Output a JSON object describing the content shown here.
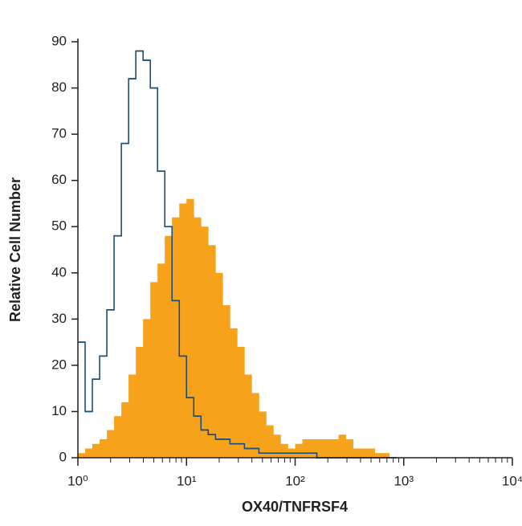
{
  "chart_data": {
    "type": "histogram",
    "x_label": "OX40/TNFRSF4",
    "y_label": "Relative Cell Number",
    "xscale": "log",
    "xlim": [
      1,
      10000
    ],
    "xticks": [
      {
        "value": 1,
        "label": "10⁰"
      },
      {
        "value": 10,
        "label": "10¹"
      },
      {
        "value": 100,
        "label": "10²"
      },
      {
        "value": 1000,
        "label": "10³"
      },
      {
        "value": 10000,
        "label": "10⁴"
      }
    ],
    "ylim": [
      0,
      90
    ],
    "yticks": [
      0,
      10,
      20,
      30,
      40,
      50,
      60,
      70,
      80,
      90
    ],
    "bins": [
      1,
      1.166,
      1.359,
      1.585,
      1.848,
      2.154,
      2.512,
      2.929,
      3.415,
      3.981,
      4.642,
      5.412,
      6.31,
      7.356,
      8.577,
      10,
      11.66,
      13.59,
      15.85,
      18.48,
      21.54,
      25.12,
      29.29,
      34.15,
      39.81,
      46.42,
      54.12,
      63.1,
      73.56,
      85.77,
      100,
      116.6,
      135.9,
      158.5,
      184.8,
      215.4,
      251.2,
      292.9,
      341.5,
      398.1,
      464.2,
      541.2,
      631,
      735.6,
      857.7
    ],
    "series": [
      {
        "color": "#f7a21b",
        "style": "filled",
        "values": [
          1,
          2,
          3,
          4,
          6,
          9,
          12,
          18,
          24,
          30,
          38,
          42,
          48,
          52,
          55,
          56,
          52,
          50,
          46,
          40,
          33,
          28,
          24,
          18,
          14,
          10,
          7,
          5,
          3,
          2,
          3,
          4,
          4,
          4,
          4,
          4,
          5,
          4,
          2,
          2,
          2,
          1,
          1,
          0
        ]
      },
      {
        "color": "#1b4f7a",
        "style": "outline",
        "values": [
          25,
          10,
          17,
          22,
          32,
          48,
          68,
          82,
          88,
          86,
          80,
          62,
          50,
          34,
          22,
          13,
          9,
          6,
          5,
          4,
          4,
          3,
          3,
          2,
          2,
          1,
          1,
          1,
          1,
          1,
          1,
          1,
          1,
          0,
          0,
          0,
          0,
          0,
          0,
          0,
          0,
          0,
          0,
          0
        ]
      }
    ]
  }
}
